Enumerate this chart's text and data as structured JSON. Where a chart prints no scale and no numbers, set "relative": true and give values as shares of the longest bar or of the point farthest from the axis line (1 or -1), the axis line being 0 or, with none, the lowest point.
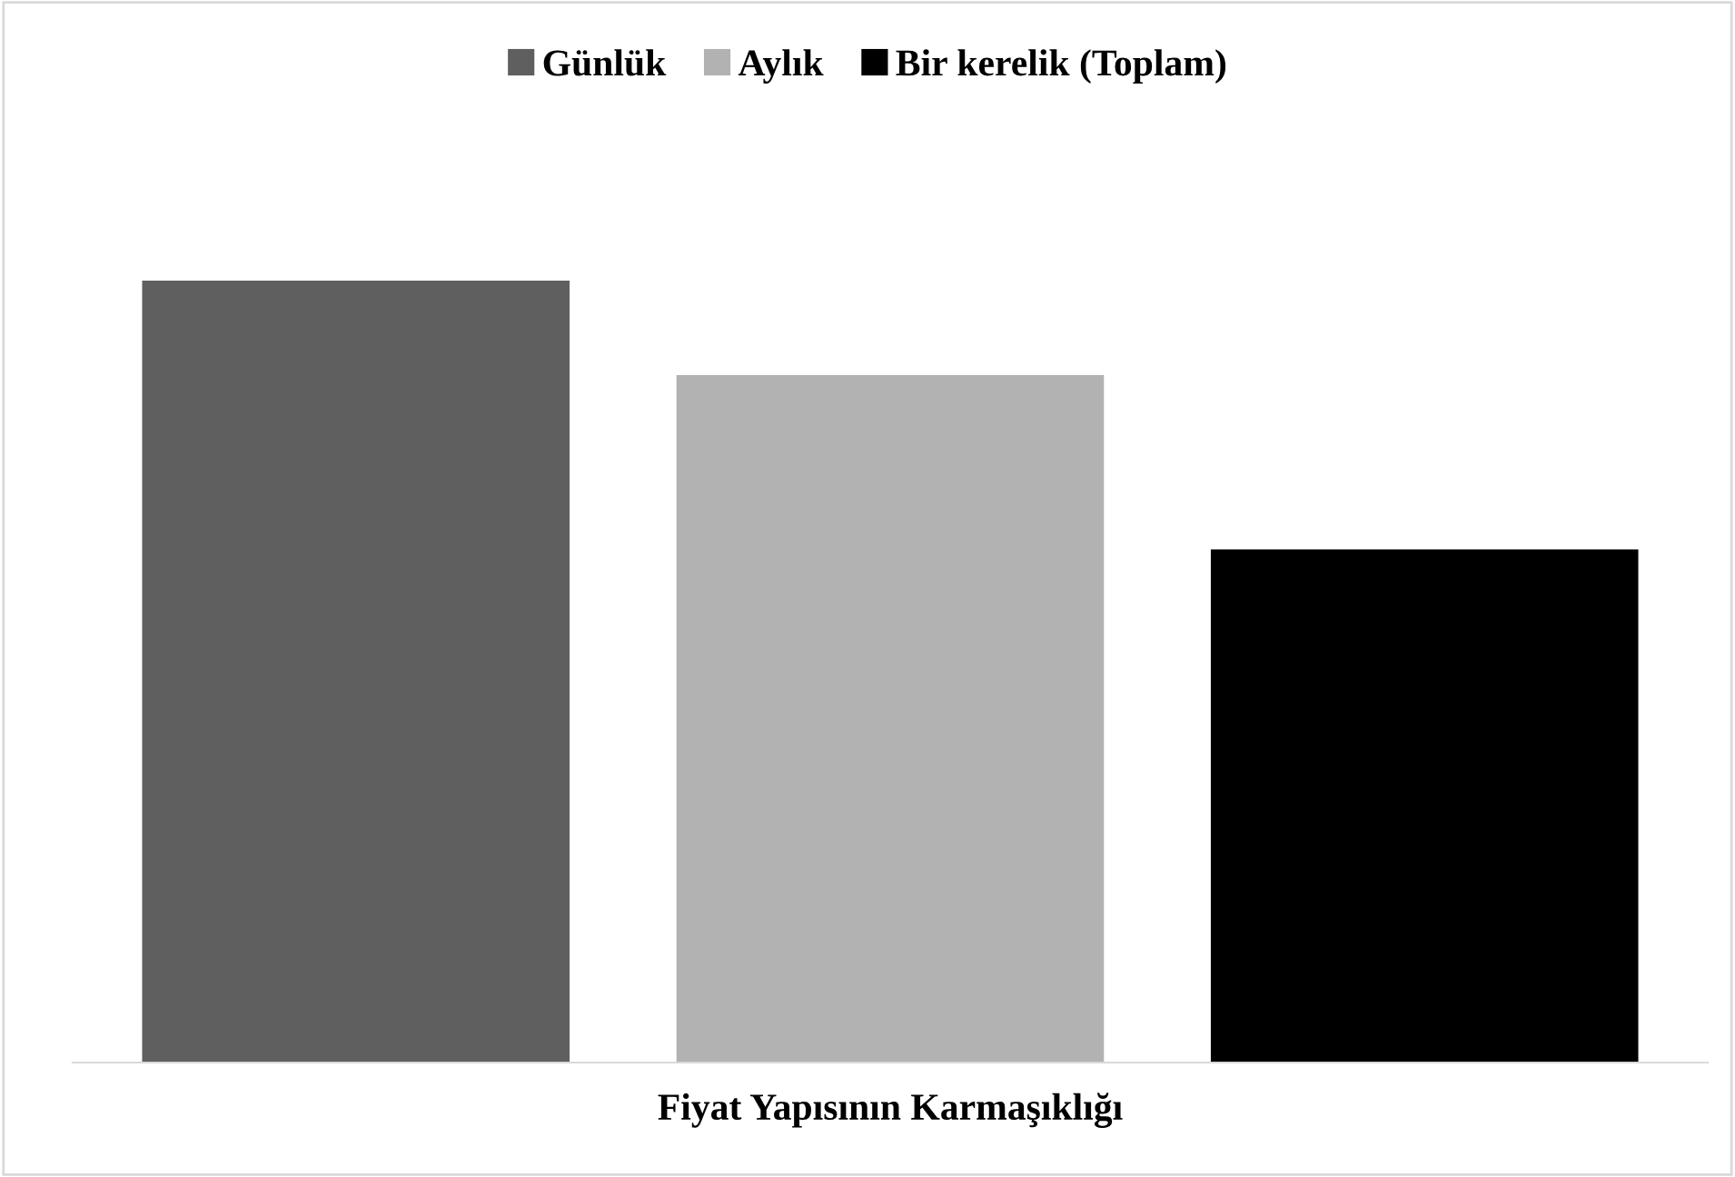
{
  "chart_data": {
    "type": "bar",
    "relative": true,
    "stacked": true,
    "categories": [
      null,
      null,
      null
    ],
    "xlabel": "Fiyat Yapısının Karmaşıklığı",
    "legend": "top",
    "grid": false,
    "series": [
      {
        "name": "Günlük",
        "color": "#5f5f5f",
        "values": [
          1,
          null,
          null
        ]
      },
      {
        "name": "Aylık",
        "color": "#b2b2b2",
        "values": [
          null,
          0.879,
          null
        ]
      },
      {
        "name": "Bir kerelik (Toplam)",
        "color": "#000000",
        "values": [
          null,
          null,
          0.656
        ]
      }
    ]
  }
}
